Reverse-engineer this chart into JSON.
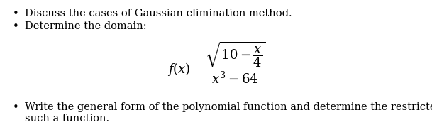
{
  "bullet1": "Discuss the cases of Gaussian elimination method.",
  "bullet2": "Determine the domain:",
  "bullet3_line1": "Write the general form of the polynomial function and determine the restricted domain for",
  "bullet3_line2": "such a function.",
  "bg_color": "#ffffff",
  "text_color": "#000000",
  "formula_color_sqrt": "#cc6600",
  "font_size": 10.5,
  "figsize": [
    6.09,
    1.86
  ],
  "dpi": 100
}
